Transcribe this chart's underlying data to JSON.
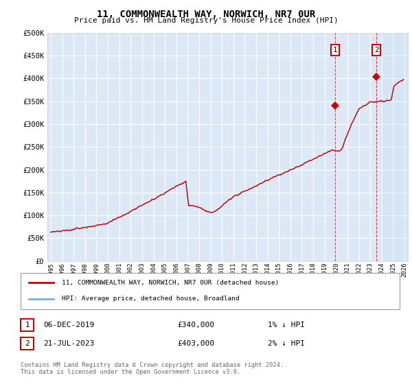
{
  "title": "11, COMMONWEALTH WAY, NORWICH, NR7 0UR",
  "subtitle": "Price paid vs. HM Land Registry's House Price Index (HPI)",
  "ylabel_ticks": [
    0,
    50000,
    100000,
    150000,
    200000,
    250000,
    300000,
    350000,
    400000,
    450000,
    500000
  ],
  "ylabel_labels": [
    "£0",
    "£50K",
    "£100K",
    "£150K",
    "£200K",
    "£250K",
    "£300K",
    "£350K",
    "£400K",
    "£450K",
    "£500K"
  ],
  "x_start_year": 1995,
  "x_end_year": 2026,
  "xtick_years": [
    1995,
    1996,
    1997,
    1998,
    1999,
    2000,
    2001,
    2002,
    2003,
    2004,
    2005,
    2006,
    2007,
    2008,
    2009,
    2010,
    2011,
    2012,
    2013,
    2014,
    2015,
    2016,
    2017,
    2018,
    2019,
    2020,
    2021,
    2022,
    2023,
    2024,
    2025,
    2026
  ],
  "hpi_color": "#7fadd4",
  "price_color": "#cc0000",
  "marker1_year": 2019.92,
  "marker1_price": 340000,
  "marker1_label": "1",
  "marker1_date": "06-DEC-2019",
  "marker1_amount": "£340,000",
  "marker1_hpi_diff": "1% ↓ HPI",
  "marker2_year": 2023.55,
  "marker2_price": 403000,
  "marker2_label": "2",
  "marker2_date": "21-JUL-2023",
  "marker2_amount": "£403,000",
  "marker2_hpi_diff": "2% ↓ HPI",
  "future_shade_start": 2024.0,
  "legend_line1": "11, COMMONWEALTH WAY, NORWICH, NR7 0UR (detached house)",
  "legend_line2": "HPI: Average price, detached house, Broadland",
  "footer": "Contains HM Land Registry data © Crown copyright and database right 2024.\nThis data is licensed under the Open Government Licence v3.0.",
  "bg_color": "#ffffff",
  "plot_bg_color": "#dce8f5",
  "grid_color": "#ffffff",
  "ylim": [
    0,
    500000
  ]
}
